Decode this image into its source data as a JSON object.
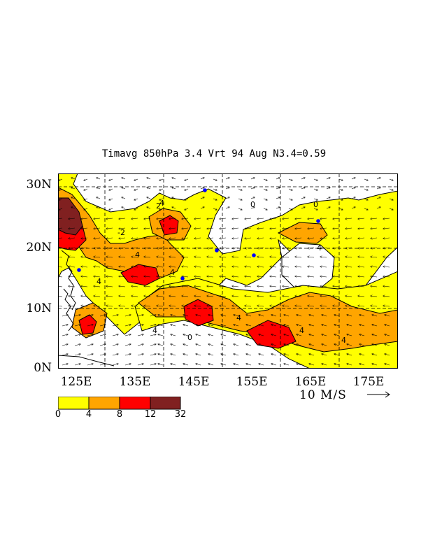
{
  "title": "Timavg 850hPa 3.4 Vrt 94 Aug N3.4=0.59",
  "lat_labels": [
    "30N",
    "20N",
    "10N",
    "0N"
  ],
  "lon_labels": [
    "125E",
    "135E",
    "145E",
    "155E",
    "165E",
    "175E"
  ],
  "reference_vector_label": "10 M/S",
  "colorbar": {
    "bins": [
      {
        "from": "0",
        "to": "4",
        "color": "#ffff00"
      },
      {
        "from": "4",
        "to": "8",
        "color": "#ffa500"
      },
      {
        "from": "8",
        "to": "12",
        "color": "#ff0000"
      },
      {
        "from": "12",
        "to": "32",
        "color": "#802020"
      }
    ],
    "labels": [
      "0",
      "4",
      "8",
      "12",
      "32"
    ]
  },
  "contour_labels": [
    "4",
    "4",
    "4",
    "4",
    "4",
    "4",
    "4",
    "4",
    "4",
    "0",
    "0",
    "0",
    "2",
    "-2"
  ],
  "colors": {
    "level_0_4": "#ffff00",
    "level_4_8": "#ffa500",
    "level_8_12": "#ff0000",
    "level_12_32": "#802020",
    "negative_vortex": "#0000ff"
  }
}
